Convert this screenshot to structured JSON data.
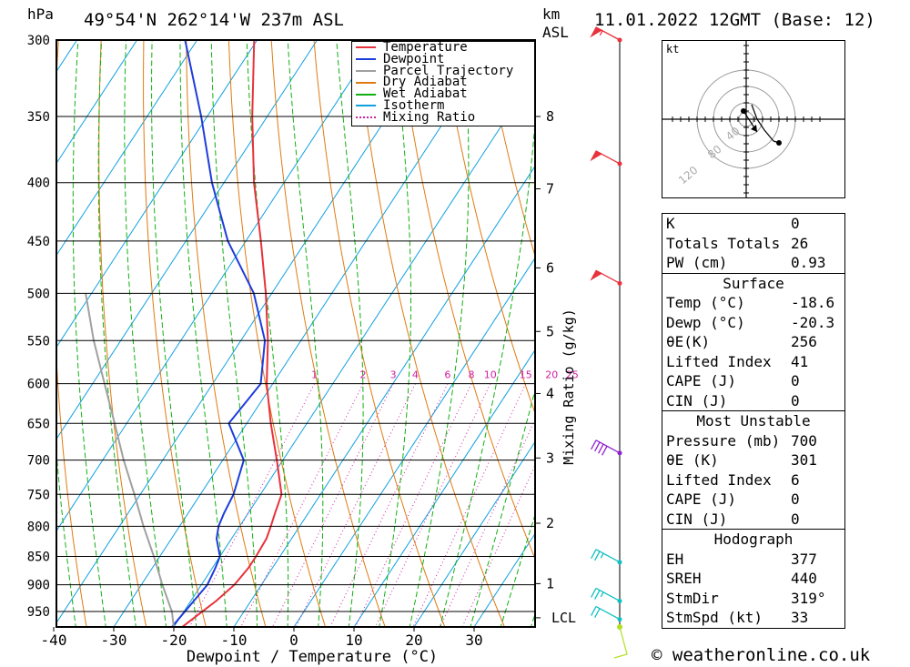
{
  "header": {
    "hpa_unit": "hPa",
    "location": "49°54'N 262°14'W 237m ASL",
    "km_unit": "km",
    "asl_unit": "ASL",
    "datetime": "11.01.2022 12GMT (Base: 12)"
  },
  "footer": {
    "credit": "© weatheronline.co.uk"
  },
  "hodograph": {
    "unit": "kt",
    "ring_labels": [
      "40",
      "80",
      "120"
    ]
  },
  "legend": [
    {
      "label": "Temperature",
      "color": "#e8323c"
    },
    {
      "label": "Dewpoint",
      "color": "#1e3cdc"
    },
    {
      "label": "Parcel Trajectory",
      "color": "#a0a0a0"
    },
    {
      "label": "Dry Adiabat",
      "color": "#e07a10"
    },
    {
      "label": "Wet Adiabat",
      "color": "#10b010"
    },
    {
      "label": "Isotherm",
      "color": "#10a0e0"
    },
    {
      "label": "Mixing Ratio",
      "color": "#d020a0"
    }
  ],
  "stats": {
    "basic": [
      {
        "label": "K",
        "value": "0"
      },
      {
        "label": "Totals Totals",
        "value": "26"
      },
      {
        "label": "PW (cm)",
        "value": "0.93"
      }
    ],
    "surface_title": "Surface",
    "surface": [
      {
        "label": "Temp (°C)",
        "value": "-18.6"
      },
      {
        "label": "Dewp (°C)",
        "value": "-20.3"
      },
      {
        "label": "θE(K)",
        "value": "256"
      },
      {
        "label": "Lifted Index",
        "value": "41"
      },
      {
        "label": "CAPE (J)",
        "value": "0"
      },
      {
        "label": "CIN (J)",
        "value": "0"
      }
    ],
    "mu_title": "Most Unstable",
    "most_unstable": [
      {
        "label": "Pressure (mb)",
        "value": "700"
      },
      {
        "label": "θE (K)",
        "value": "301"
      },
      {
        "label": "Lifted Index",
        "value": "6"
      },
      {
        "label": "CAPE (J)",
        "value": "0"
      },
      {
        "label": "CIN (J)",
        "value": "0"
      }
    ],
    "hodo_title": "Hodograph",
    "hodograph": [
      {
        "label": "EH",
        "value": "377"
      },
      {
        "label": "SREH",
        "value": "440"
      },
      {
        "label": "StmDir",
        "value": "319°"
      },
      {
        "label": "StmSpd (kt)",
        "value": "33"
      }
    ]
  },
  "chart_data": {
    "type": "line",
    "title": "Skew-T log-P sounding",
    "xlabel": "Dewpoint / Temperature (°C)",
    "ylabel_right": "Mixing Ratio (g/kg)",
    "pressure_levels": [
      300,
      350,
      400,
      450,
      500,
      550,
      600,
      650,
      700,
      750,
      800,
      850,
      900,
      950
    ],
    "pressure_labels": [
      "300",
      "350",
      "400",
      "450",
      "500",
      "550",
      "600",
      "650",
      "700",
      "750",
      "800",
      "850",
      "900",
      "950"
    ],
    "x_ticks": [
      "-40",
      "-30",
      "-20",
      "-10",
      "0",
      "10",
      "20",
      "30"
    ],
    "x_tick_values": [
      -40,
      -30,
      -20,
      -10,
      0,
      10,
      20,
      30
    ],
    "xlim": [
      -40,
      40
    ],
    "plim": [
      300,
      980
    ],
    "km_levels": [
      {
        "label": "8",
        "p": 350
      },
      {
        "label": "7",
        "p": 405
      },
      {
        "label": "6",
        "p": 475
      },
      {
        "label": "5",
        "p": 540
      },
      {
        "label": "4",
        "p": 612
      },
      {
        "label": "3",
        "p": 697
      },
      {
        "label": "2",
        "p": 795
      },
      {
        "label": "1",
        "p": 898
      },
      {
        "label": "LCL",
        "p": 962
      }
    ],
    "mixing_ratio_labels": [
      "1",
      "2",
      "3",
      "4",
      "6",
      "8",
      "10",
      "15",
      "20",
      "25"
    ],
    "mixing_ratio_values": [
      1,
      2,
      3,
      4,
      6,
      8,
      10,
      15,
      20,
      25
    ],
    "series": [
      {
        "name": "Temperature",
        "p": [
          980,
          960,
          930,
          900,
          870,
          850,
          820,
          800,
          780,
          750,
          700,
          650,
          600,
          550,
          500,
          450,
          400,
          350,
          300
        ],
        "t": [
          -18.6,
          -17.5,
          -15.8,
          -14.5,
          -14.0,
          -14.0,
          -14.2,
          -14.8,
          -15.5,
          -16.5,
          -21.0,
          -26.0,
          -31.0,
          -35.5,
          -41.0,
          -47.5,
          -55.0,
          -62.5,
          -70.5
        ]
      },
      {
        "name": "Dewpoint",
        "p": [
          980,
          960,
          930,
          900,
          870,
          850,
          820,
          800,
          780,
          750,
          700,
          650,
          600,
          550,
          500,
          450,
          400,
          350,
          300
        ],
        "t": [
          -20.3,
          -20.0,
          -19.5,
          -19.0,
          -19.5,
          -20.0,
          -22.5,
          -23.5,
          -24.0,
          -24.5,
          -26.5,
          -33.0,
          -32.0,
          -36.0,
          -43.0,
          -53.0,
          -62.0,
          -71.0,
          -82.0
        ]
      },
      {
        "name": "Parcel Trajectory",
        "p": [
          980,
          950,
          900,
          850,
          800,
          750,
          700,
          650,
          600,
          550,
          500
        ],
        "t": [
          -20.0,
          -22.0,
          -26.5,
          -31.0,
          -36.0,
          -41.0,
          -46.5,
          -52.0,
          -58.0,
          -64.5,
          -71.0
        ]
      }
    ],
    "wind_barbs": [
      {
        "p": 300,
        "speed": 55,
        "color": "#e8323c"
      },
      {
        "p": 385,
        "speed": 50,
        "color": "#e8323c"
      },
      {
        "p": 490,
        "speed": 50,
        "color": "#e8323c"
      },
      {
        "p": 690,
        "speed": 40,
        "color": "#9020d0"
      },
      {
        "p": 860,
        "speed": 25,
        "color": "#10c0c0"
      },
      {
        "p": 930,
        "speed": 25,
        "color": "#10c0c0"
      },
      {
        "p": 965,
        "speed": 20,
        "color": "#10c0c0"
      }
    ]
  }
}
